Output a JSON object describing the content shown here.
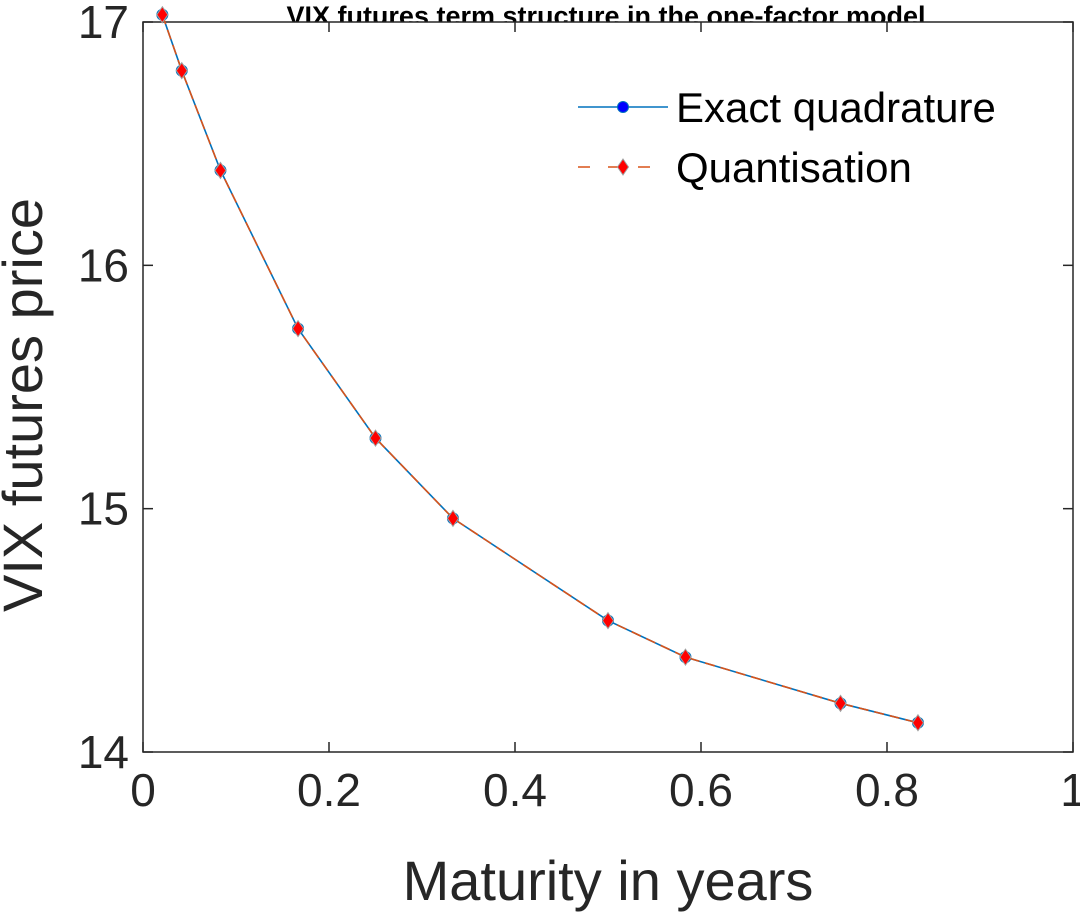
{
  "chart_data": {
    "type": "line",
    "title": "VIX futures term structure in the one-factor model",
    "xlabel": "Maturity in years",
    "ylabel": "VIX futures price",
    "xlim": [
      0,
      1
    ],
    "ylim": [
      14,
      17
    ],
    "xticks": [
      "0",
      "0.2",
      "0.4",
      "0.6",
      "0.8",
      "1"
    ],
    "yticks": [
      "14",
      "15",
      "16",
      "17"
    ],
    "legend_position": "top-right",
    "x": [
      0.0208,
      0.0417,
      0.0833,
      0.1667,
      0.25,
      0.3333,
      0.5,
      0.5833,
      0.75,
      0.8333
    ],
    "series": [
      {
        "name": "Exact quadrature",
        "color": "#0072BD",
        "marker": "circle",
        "marker_color": "#0000FF",
        "line_style": "solid",
        "values": [
          17.03,
          16.8,
          16.39,
          15.74,
          15.29,
          14.96,
          14.54,
          14.39,
          14.2,
          14.12
        ]
      },
      {
        "name": "Quantisation",
        "color": "#D95319",
        "marker": "diamond",
        "marker_color": "#FF0000",
        "line_style": "dashed",
        "values": [
          17.03,
          16.8,
          16.39,
          15.74,
          15.29,
          14.96,
          14.54,
          14.39,
          14.2,
          14.12
        ]
      }
    ],
    "grid": false
  }
}
